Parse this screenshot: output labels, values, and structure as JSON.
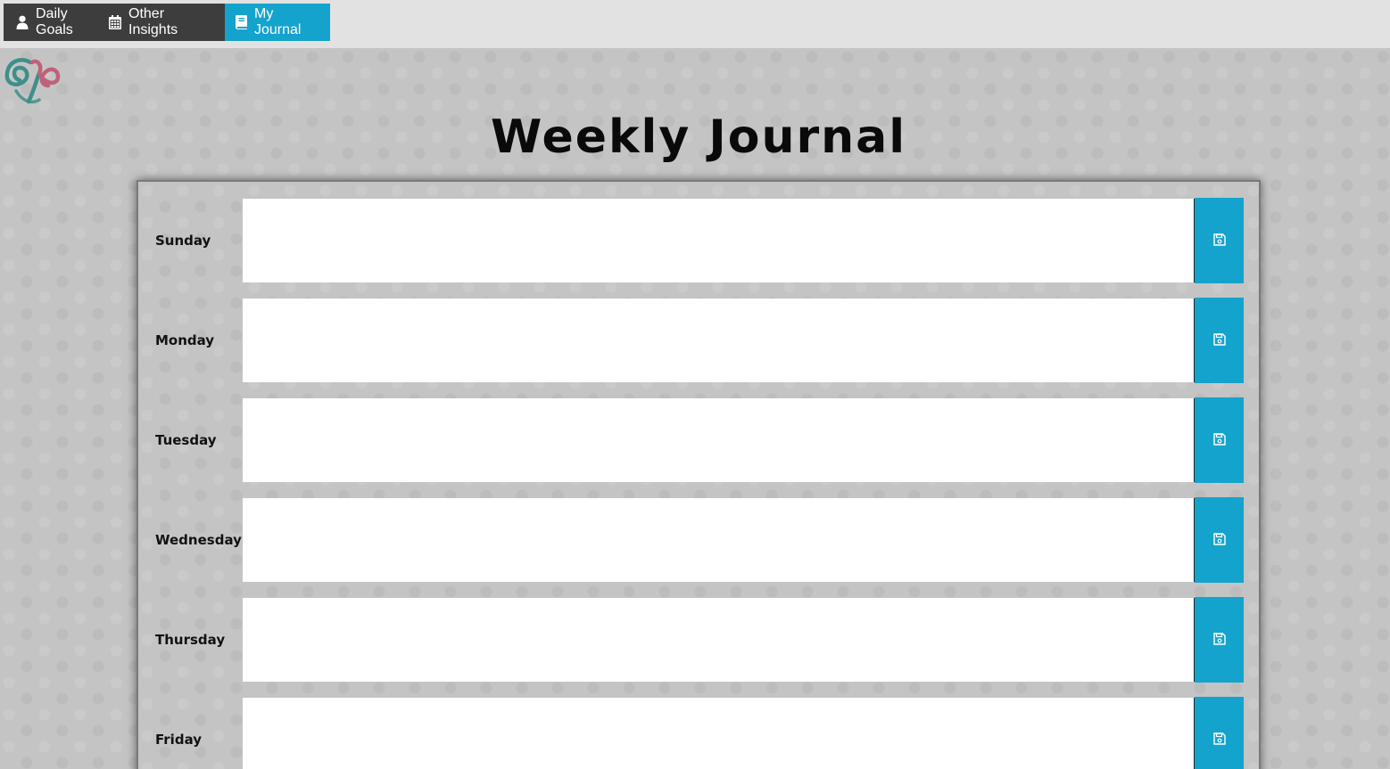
{
  "nav": {
    "tabs": [
      {
        "label": "Daily Goals",
        "icon": "user-icon",
        "active": false
      },
      {
        "label": "Other Insights",
        "icon": "calendar-icon",
        "active": false
      },
      {
        "label": "My Journal",
        "icon": "book-icon",
        "active": true
      }
    ]
  },
  "logo": {
    "icon": "logo-icon"
  },
  "page": {
    "title": "Weekly Journal"
  },
  "journal": {
    "days": [
      {
        "label": "Sunday",
        "entry": ""
      },
      {
        "label": "Monday",
        "entry": ""
      },
      {
        "label": "Tuesday",
        "entry": ""
      },
      {
        "label": "Wednesday",
        "entry": ""
      },
      {
        "label": "Thursday",
        "entry": ""
      },
      {
        "label": "Friday",
        "entry": ""
      }
    ],
    "save_icon": "save-icon"
  },
  "colors": {
    "accent": "#14a3cc",
    "nav_dark": "#3d3d3d",
    "nav_bar": "#e2e2e2",
    "background": "#c4c4c4",
    "logo_teal": "#3f8f8a",
    "logo_pink": "#c0617a"
  }
}
